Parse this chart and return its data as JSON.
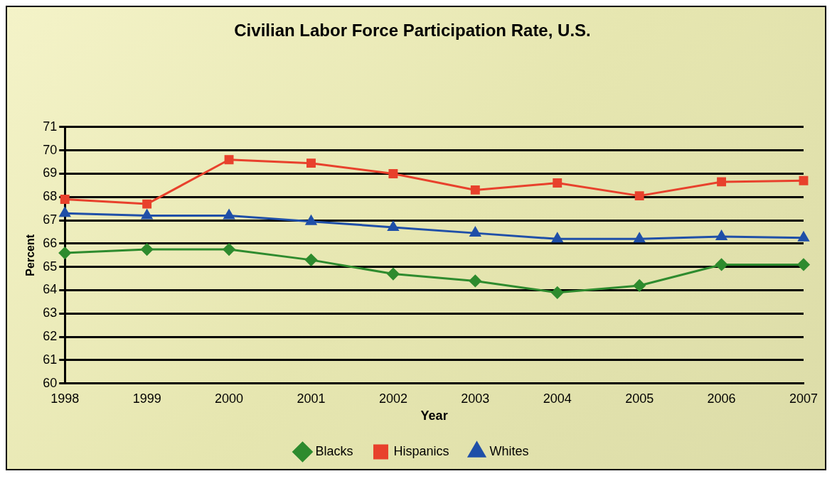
{
  "chart_data": {
    "type": "line",
    "title": "Civilian Labor Force Participation Rate, U.S.",
    "xlabel": "Year",
    "ylabel": "Percent",
    "categories": [
      "1998",
      "1999",
      "2000",
      "2001",
      "2002",
      "2003",
      "2004",
      "2005",
      "2006",
      "2007"
    ],
    "series": [
      {
        "name": "Blacks",
        "color": "#2e8b2e",
        "marker": "diamond",
        "values": [
          65.6,
          65.75,
          65.75,
          65.3,
          64.7,
          64.4,
          63.9,
          64.2,
          65.1,
          65.1
        ]
      },
      {
        "name": "Hispanics",
        "color": "#e8412c",
        "marker": "square",
        "values": [
          67.9,
          67.7,
          69.6,
          69.45,
          69.0,
          68.3,
          68.6,
          68.05,
          68.65,
          68.7
        ]
      },
      {
        "name": "Whites",
        "color": "#1f4fa8",
        "marker": "triangle",
        "values": [
          67.3,
          67.2,
          67.2,
          66.95,
          66.7,
          66.45,
          66.2,
          66.2,
          66.3,
          66.25
        ]
      }
    ],
    "ylim": [
      60,
      71
    ],
    "yticks": [
      60,
      61,
      62,
      63,
      64,
      65,
      66,
      67,
      68,
      69,
      70,
      71
    ],
    "grid": "y",
    "legend": "bottom"
  }
}
